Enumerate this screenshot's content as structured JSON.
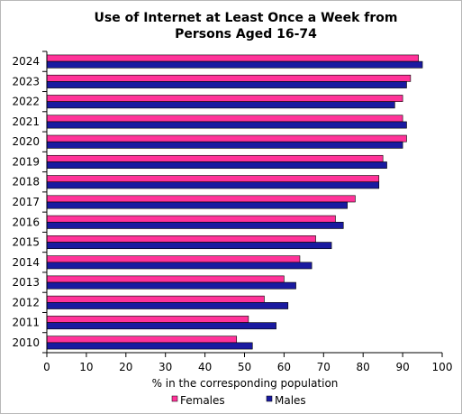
{
  "chart_data": {
    "type": "bar",
    "orientation": "horizontal",
    "title": "Use of Internet at Least Once a Week from Persons Aged 16-74",
    "title_lines": [
      "Use of Internet at Least Once a Week from",
      "Persons Aged 16-74"
    ],
    "xlabel": "% in the corresponding population",
    "ylabel": "",
    "xlim": [
      0,
      100
    ],
    "xticks": [
      0,
      10,
      20,
      30,
      40,
      50,
      60,
      70,
      80,
      90,
      100
    ],
    "categories": [
      "2024",
      "2023",
      "2022",
      "2021",
      "2020",
      "2019",
      "2018",
      "2017",
      "2016",
      "2015",
      "2014",
      "2013",
      "2012",
      "2011",
      "2010"
    ],
    "series": [
      {
        "name": "Females",
        "color": "#ff3399",
        "values": [
          94,
          92,
          90,
          90,
          91,
          85,
          84,
          78,
          73,
          68,
          64,
          60,
          55,
          51,
          48
        ]
      },
      {
        "name": "Males",
        "color": "#1a1aa0",
        "values": [
          95,
          91,
          88,
          91,
          90,
          86,
          84,
          76,
          75,
          72,
          67,
          63,
          61,
          58,
          52
        ]
      }
    ],
    "grid": false,
    "legend_position": "bottom"
  }
}
